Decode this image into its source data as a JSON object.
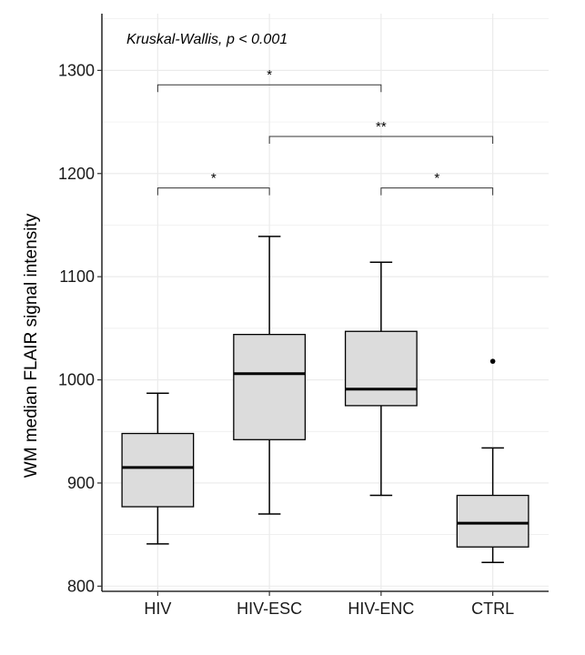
{
  "chart_data": {
    "type": "boxplot",
    "title": "",
    "xlabel": "",
    "ylabel": "WM median FLAIR signal intensity",
    "ylim": [
      795,
      1355
    ],
    "yticks": [
      800,
      900,
      1000,
      1100,
      1200,
      1300
    ],
    "grid": true,
    "categories": [
      "HIV",
      "HIV-ESC",
      "HIV-ENC",
      "CTRL"
    ],
    "boxes": [
      {
        "name": "HIV",
        "whisker_low": 841,
        "q1": 877,
        "median": 915,
        "q3": 948,
        "whisker_high": 987,
        "outliers": []
      },
      {
        "name": "HIV-ESC",
        "whisker_low": 870,
        "q1": 942,
        "median": 1006,
        "q3": 1044,
        "whisker_high": 1139,
        "outliers": []
      },
      {
        "name": "HIV-ENC",
        "whisker_low": 888,
        "q1": 975,
        "median": 991,
        "q3": 1047,
        "whisker_high": 1114,
        "outliers": []
      },
      {
        "name": "CTRL",
        "whisker_low": 823,
        "q1": 838,
        "median": 861,
        "q3": 888,
        "whisker_high": 934,
        "outliers": [
          1018
        ]
      }
    ],
    "annotation": "Kruskal-Wallis, p < 0.001",
    "comparisons": [
      {
        "from": 0,
        "to": 1,
        "y": 1186,
        "label": "*"
      },
      {
        "from": 2,
        "to": 3,
        "y": 1186,
        "label": "*"
      },
      {
        "from": 1,
        "to": 3,
        "y": 1236,
        "label": "**"
      },
      {
        "from": 0,
        "to": 2,
        "y": 1286,
        "label": "*"
      }
    ],
    "colors": {
      "box_fill": "#dcdcdc",
      "grid": "#ebebeb",
      "line": "#000000"
    }
  }
}
